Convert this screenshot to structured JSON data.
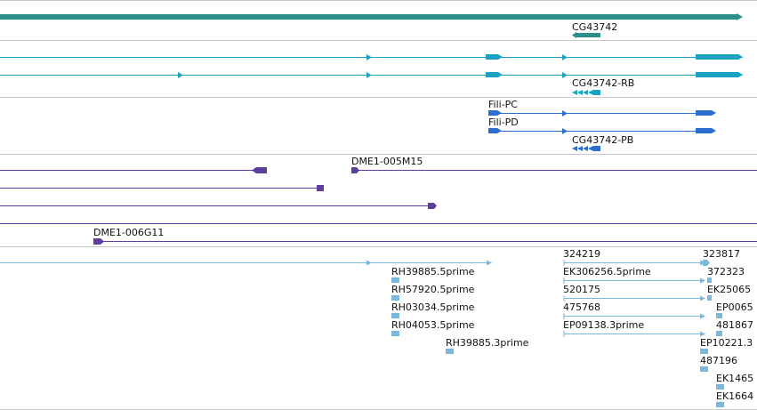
{
  "colors": {
    "gene": "#2b8f8a",
    "mrna": "#1aa3c0",
    "mrna_alt": "#2d6fcf",
    "clone": "#5e3f9c",
    "est": "#7ab8dc",
    "divider": "#c8c8c8"
  },
  "labels": {
    "gene_cg43742": "CG43742",
    "mrna_cg43742_rb": "CG43742-RB",
    "mrna_fili_pc": "Fili-PC",
    "mrna_fili_pd": "Fili-PD",
    "mrna_cg43742_pb": "CG43742-PB",
    "clone_005m15": "DME1-005M15",
    "clone_006g11": "DME1-006G11",
    "est_324219": "324219",
    "est_323817": "323817",
    "est_rh39885_5": "RH39885.5prime",
    "est_ek306256_5": "EK306256.5prime",
    "est_372323": "372323",
    "est_rh57920_5": "RH57920.5prime",
    "est_520175": "520175",
    "est_ek25065": "EK25065",
    "est_rh03034_5": "RH03034.5prime",
    "est_475768": "475768",
    "est_ep0065": "EP0065",
    "est_rh04053_5": "RH04053.5prime",
    "est_ep09138_3": "EP09138.3prime",
    "est_481867": "481867",
    "est_rh39885_3": "RH39885.3prime",
    "est_ep10221": "EP10221.3",
    "est_487196": "487196",
    "est_ek1465": "EK1465",
    "est_ek1664": "EK1664"
  }
}
